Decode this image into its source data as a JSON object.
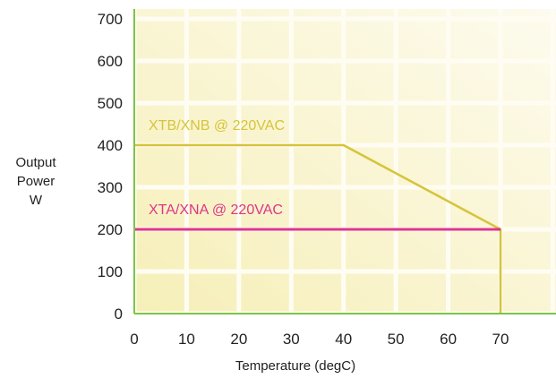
{
  "chart_data": {
    "type": "line",
    "title": "",
    "xlabel": "Temperature (degC)",
    "ylabel": [
      "Output",
      "Power",
      "W"
    ],
    "xlim": [
      0,
      80
    ],
    "ylim": [
      0,
      700
    ],
    "x_ticks": [
      "0",
      "10",
      "20",
      "30",
      "40",
      "50",
      "60",
      "70"
    ],
    "y_ticks": [
      "0",
      "100",
      "200",
      "300",
      "400",
      "500",
      "600",
      "700"
    ],
    "grid": true,
    "series": [
      {
        "name": "XTB/XNB @ 220VAC",
        "color": "#d6c43a",
        "points": [
          [
            0,
            400
          ],
          [
            40,
            400
          ],
          [
            70,
            200
          ],
          [
            70,
            0
          ]
        ]
      },
      {
        "name": "XTA/XNA @ 220VAC",
        "color": "#e0358a",
        "points": [
          [
            0,
            200
          ],
          [
            70,
            200
          ]
        ]
      }
    ],
    "colors": {
      "axis": "#7cc44a",
      "plot_background": "#fbf6d0",
      "grid_cell": "#fffbe6"
    }
  }
}
